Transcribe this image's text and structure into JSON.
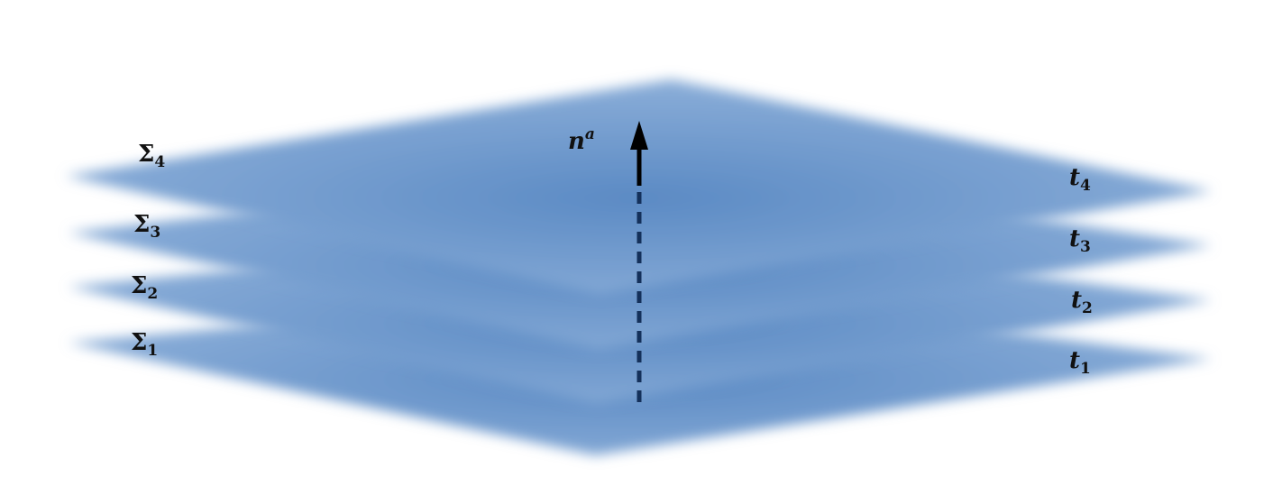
{
  "colors": {
    "slice_center": "#5b8ac4",
    "slice_edge": "#8fb1da",
    "arrow_solid": "#000000",
    "arrow_dashed": "#14305a"
  },
  "slices": [
    {
      "sigma": "Σ",
      "sigma_sub": "1",
      "t": "t",
      "t_sub": "1"
    },
    {
      "sigma": "Σ",
      "sigma_sub": "2",
      "t": "t",
      "t_sub": "2"
    },
    {
      "sigma": "Σ",
      "sigma_sub": "3",
      "t": "t",
      "t_sub": "3"
    },
    {
      "sigma": "Σ",
      "sigma_sub": "4",
      "t": "t",
      "t_sub": "4"
    }
  ],
  "normal_vector": {
    "base": "n",
    "sup": "a"
  }
}
